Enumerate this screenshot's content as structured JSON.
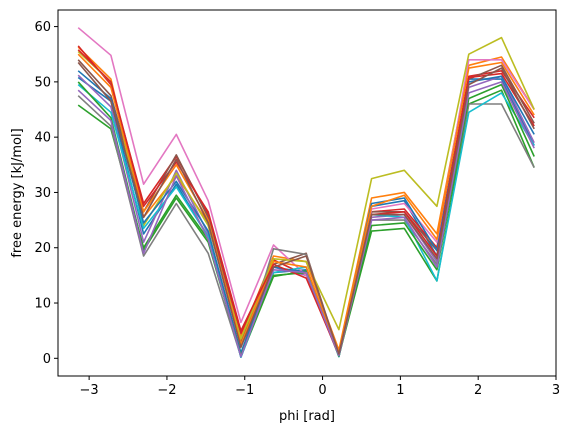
{
  "chart_data": {
    "type": "line",
    "title": "",
    "xlabel": "phi [rad]",
    "ylabel": "free energy [kJ/mol]",
    "xlim": [
      -3.4,
      3.0
    ],
    "ylim": [
      -3.2,
      63
    ],
    "xticks": [
      -3,
      -2,
      -1,
      0,
      1,
      2,
      3
    ],
    "yticks": [
      0,
      10,
      20,
      30,
      40,
      50,
      60
    ],
    "grid": false,
    "x": [
      -3.14,
      -2.72,
      -2.3,
      -1.88,
      -1.47,
      -1.05,
      -0.63,
      -0.21,
      0.21,
      0.63,
      1.05,
      1.47,
      1.88,
      2.3,
      2.72
    ],
    "series": [
      {
        "color": "#1f77b4",
        "values": [
          50.8,
          46.5,
          22.5,
          31.5,
          22.0,
          0.2,
          15.5,
          16.0,
          0.3,
          27.5,
          28.5,
          18.5,
          50.5,
          50.5,
          38.5
        ]
      },
      {
        "color": "#ff7f0e",
        "values": [
          56.3,
          50.5,
          25.5,
          33.0,
          24.5,
          4.0,
          18.5,
          17.5,
          1.5,
          29.0,
          30.0,
          22.5,
          53.0,
          54.5,
          45.0
        ]
      },
      {
        "color": "#2ca02c",
        "values": [
          45.8,
          41.5,
          20.0,
          29.5,
          21.5,
          0.3,
          14.8,
          15.8,
          0.5,
          23.0,
          23.5,
          14.0,
          46.0,
          48.5,
          34.5
        ]
      },
      {
        "color": "#d62728",
        "values": [
          56.5,
          49.5,
          28.0,
          36.5,
          26.0,
          4.5,
          17.8,
          15.0,
          0.8,
          26.5,
          27.0,
          20.0,
          51.0,
          52.0,
          43.5
        ]
      },
      {
        "color": "#9467bd",
        "values": [
          51.2,
          45.5,
          21.0,
          34.0,
          22.5,
          0.2,
          16.5,
          15.0,
          0.4,
          25.5,
          26.0,
          17.5,
          49.0,
          51.0,
          39.0
        ]
      },
      {
        "color": "#8c564b",
        "values": [
          54.0,
          47.5,
          26.5,
          36.8,
          25.5,
          3.0,
          17.0,
          19.0,
          0.6,
          26.5,
          26.5,
          19.5,
          50.5,
          53.0,
          42.5
        ]
      },
      {
        "color": "#e377c2",
        "values": [
          59.8,
          54.8,
          31.5,
          40.5,
          28.5,
          6.5,
          20.5,
          15.0,
          0.5,
          27.0,
          28.0,
          21.0,
          54.0,
          54.0,
          45.0
        ]
      },
      {
        "color": "#7f7f7f",
        "values": [
          47.5,
          42.0,
          18.5,
          28.0,
          19.0,
          0.3,
          19.8,
          18.8,
          0.3,
          25.0,
          25.0,
          17.0,
          46.0,
          46.0,
          34.5
        ]
      },
      {
        "color": "#bcbd22",
        "values": [
          55.5,
          50.0,
          24.0,
          33.5,
          24.0,
          3.5,
          18.0,
          17.5,
          5.2,
          32.5,
          34.0,
          27.5,
          55.0,
          58.0,
          45.0
        ]
      },
      {
        "color": "#17becf",
        "values": [
          49.5,
          44.5,
          23.5,
          31.0,
          22.0,
          0.2,
          15.5,
          16.5,
          0.3,
          26.0,
          25.5,
          14.0,
          44.5,
          48.0,
          38.5
        ]
      },
      {
        "color": "#1f77b4",
        "values": [
          52.0,
          47.0,
          24.5,
          32.0,
          23.0,
          1.0,
          16.5,
          15.5,
          0.5,
          28.0,
          29.0,
          19.5,
          50.0,
          51.0,
          40.5
        ]
      },
      {
        "color": "#ff7f0e",
        "values": [
          55.0,
          49.0,
          26.5,
          35.0,
          25.0,
          2.5,
          17.5,
          16.5,
          1.0,
          27.5,
          29.5,
          21.5,
          52.5,
          53.5,
          44.0
        ]
      },
      {
        "color": "#2ca02c",
        "values": [
          50.0,
          43.5,
          19.5,
          29.0,
          21.0,
          0.5,
          15.0,
          15.5,
          0.4,
          24.0,
          24.5,
          16.0,
          47.0,
          49.5,
          36.5
        ]
      },
      {
        "color": "#d62728",
        "values": [
          55.8,
          50.0,
          27.5,
          35.5,
          26.5,
          5.0,
          17.0,
          14.5,
          0.6,
          26.0,
          26.5,
          18.5,
          50.8,
          51.5,
          42.0
        ]
      },
      {
        "color": "#9467bd",
        "values": [
          48.5,
          43.0,
          19.0,
          33.0,
          21.5,
          0.3,
          16.0,
          15.5,
          0.5,
          25.0,
          25.5,
          16.5,
          48.0,
          50.0,
          38.0
        ]
      },
      {
        "color": "#8c564b",
        "values": [
          53.5,
          46.5,
          25.5,
          36.0,
          24.5,
          2.0,
          16.5,
          18.5,
          0.8,
          26.0,
          26.0,
          18.0,
          49.5,
          52.5,
          41.5
        ]
      }
    ]
  }
}
